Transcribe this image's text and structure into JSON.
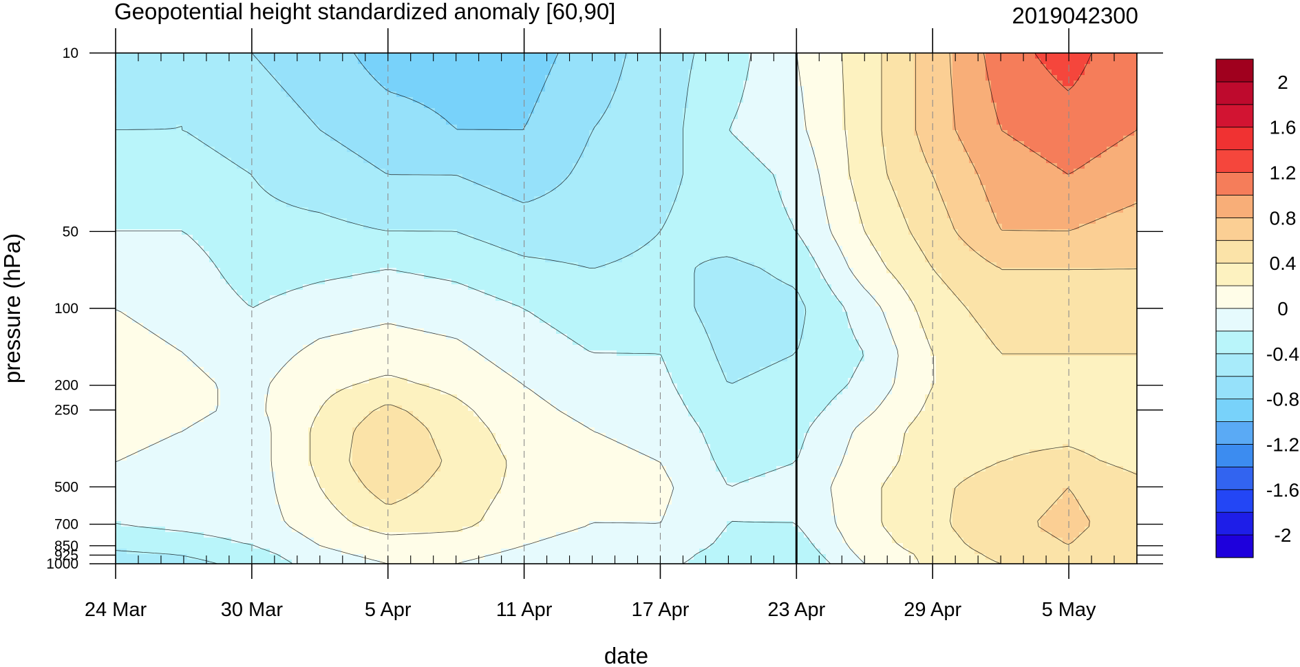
{
  "chart_data": {
    "type": "heatmap",
    "title": "Geopotential height standardized anomaly [60,90]",
    "date_stamp": "2019042300",
    "xlabel": "date",
    "ylabel": "pressure (hPa)",
    "y_scale": "log",
    "y_reversed": true,
    "ylim": [
      1000,
      10
    ],
    "xlim": [
      "2019-03-24",
      "2019-05-08"
    ],
    "x_tick_labels": [
      "24 Mar",
      "30 Mar",
      "5 Apr",
      "11 Apr",
      "17 Apr",
      "23 Apr",
      "29 Apr",
      "5 May"
    ],
    "x_tick_dates": [
      "2019-03-24",
      "2019-03-30",
      "2019-04-05",
      "2019-04-11",
      "2019-04-17",
      "2019-04-23",
      "2019-04-29",
      "2019-05-05"
    ],
    "y_tick_labels": [
      "10",
      "50",
      "100",
      "200",
      "250",
      "500",
      "700",
      "850",
      "925",
      "1000"
    ],
    "y_tick_values": [
      10,
      50,
      100,
      200,
      250,
      500,
      700,
      850,
      925,
      1000
    ],
    "current_date_line": "2019-04-23",
    "grid": "vertical dashed lines at labeled dates",
    "colorbar": {
      "placement": "right",
      "labels": [
        "2",
        "1.6",
        "1.2",
        "0.8",
        "0.4",
        "0",
        "-0.4",
        "-0.8",
        "-1.2",
        "-1.6",
        "-2"
      ],
      "levels": [
        -2.2,
        -2,
        -1.8,
        -1.6,
        -1.4,
        -1.2,
        -1,
        -0.8,
        -0.6,
        -0.4,
        -0.2,
        0,
        0.2,
        0.4,
        0.6,
        0.8,
        1,
        1.2,
        1.4,
        1.6,
        1.8,
        2,
        2.2
      ],
      "colors": [
        "#1e00dc",
        "#1e1ee8",
        "#2346f5",
        "#3264f0",
        "#3c8cf0",
        "#5aaaf5",
        "#78d2fa",
        "#96e1fa",
        "#a8ebfa",
        "#b9f5fa",
        "#e6fafd",
        "#fffde8",
        "#fdf2c0",
        "#fbe3a8",
        "#fbcf94",
        "#f8ae78",
        "#f57d5a",
        "#f5463c",
        "#f03232",
        "#d21432",
        "#be0a2d",
        "#a0001e"
      ]
    },
    "dates": [
      "2019-03-24",
      "2019-03-27",
      "2019-03-30",
      "2019-04-02",
      "2019-04-05",
      "2019-04-08",
      "2019-04-11",
      "2019-04-14",
      "2019-04-17",
      "2019-04-20",
      "2019-04-23",
      "2019-04-26",
      "2019-04-29",
      "2019-05-02",
      "2019-05-05",
      "2019-05-08"
    ],
    "levels_hPa": [
      10,
      20,
      30,
      50,
      70,
      100,
      150,
      200,
      250,
      300,
      400,
      500,
      700,
      850,
      925,
      1000
    ],
    "values": [
      [
        -0.5,
        -0.4,
        -0.6,
        -0.7,
        -0.9,
        -0.9,
        -0.9,
        -0.7,
        -0.5,
        -0.3,
        0.0,
        0.3,
        0.7,
        1.1,
        1.3,
        1.0
      ],
      [
        -0.4,
        -0.4,
        -0.5,
        -0.6,
        -0.7,
        -0.8,
        -0.8,
        -0.6,
        -0.5,
        -0.2,
        -0.05,
        0.3,
        0.7,
        1.0,
        1.1,
        1.0
      ],
      [
        -0.3,
        -0.3,
        -0.4,
        -0.5,
        -0.6,
        -0.6,
        -0.7,
        -0.55,
        -0.45,
        -0.3,
        -0.15,
        0.3,
        0.6,
        0.9,
        1.0,
        0.9
      ],
      [
        -0.2,
        -0.2,
        -0.35,
        -0.35,
        -0.4,
        -0.4,
        -0.5,
        -0.5,
        -0.4,
        -0.3,
        -0.2,
        0.2,
        0.5,
        0.8,
        0.8,
        0.7
      ],
      [
        -0.1,
        -0.1,
        -0.3,
        -0.25,
        -0.2,
        -0.25,
        -0.35,
        -0.4,
        -0.35,
        -0.45,
        -0.35,
        0.1,
        0.4,
        0.6,
        0.6,
        0.6
      ],
      [
        0.0,
        -0.05,
        -0.2,
        -0.1,
        -0.05,
        -0.1,
        -0.2,
        -0.3,
        -0.3,
        -0.5,
        -0.45,
        -0.1,
        0.3,
        0.5,
        0.5,
        0.5
      ],
      [
        0.05,
        0.0,
        -0.1,
        0.05,
        0.1,
        0.05,
        -0.1,
        -0.2,
        -0.2,
        -0.45,
        -0.4,
        -0.2,
        0.2,
        0.4,
        0.4,
        0.4
      ],
      [
        0.1,
        0.05,
        -0.05,
        0.15,
        0.25,
        0.15,
        0.0,
        -0.1,
        -0.15,
        -0.4,
        -0.35,
        -0.15,
        0.2,
        0.35,
        0.35,
        0.35
      ],
      [
        0.1,
        0.05,
        -0.05,
        0.2,
        0.45,
        0.25,
        0.05,
        -0.05,
        -0.1,
        -0.35,
        -0.3,
        -0.05,
        0.25,
        0.35,
        0.35,
        0.3
      ],
      [
        0.05,
        0.0,
        -0.1,
        0.25,
        0.55,
        0.3,
        0.1,
        0.0,
        -0.05,
        -0.3,
        -0.25,
        0.05,
        0.3,
        0.35,
        0.35,
        0.3
      ],
      [
        0.0,
        -0.05,
        -0.1,
        0.25,
        0.6,
        0.35,
        0.15,
        0.05,
        0.0,
        -0.25,
        -0.2,
        0.1,
        0.3,
        0.4,
        0.45,
        0.35
      ],
      [
        -0.05,
        -0.1,
        -0.1,
        0.2,
        0.5,
        0.3,
        0.15,
        0.05,
        0.05,
        -0.2,
        -0.15,
        0.15,
        0.35,
        0.5,
        0.6,
        0.45
      ],
      [
        -0.2,
        -0.15,
        -0.1,
        0.1,
        0.3,
        0.25,
        0.1,
        0.0,
        0.0,
        -0.2,
        -0.2,
        0.15,
        0.35,
        0.55,
        0.65,
        0.5
      ],
      [
        -0.35,
        -0.3,
        -0.2,
        0.0,
        0.1,
        0.1,
        0.0,
        -0.1,
        -0.05,
        -0.25,
        -0.3,
        0.1,
        0.3,
        0.5,
        0.6,
        0.45
      ],
      [
        -0.45,
        -0.4,
        -0.3,
        -0.05,
        0.05,
        0.05,
        -0.05,
        -0.15,
        -0.1,
        -0.3,
        -0.35,
        0.05,
        0.25,
        0.45,
        0.55,
        0.45
      ],
      [
        -0.5,
        -0.45,
        -0.35,
        -0.1,
        0.0,
        0.0,
        -0.1,
        -0.2,
        -0.15,
        -0.3,
        -0.4,
        0.0,
        0.25,
        0.4,
        0.5,
        0.4
      ]
    ]
  }
}
